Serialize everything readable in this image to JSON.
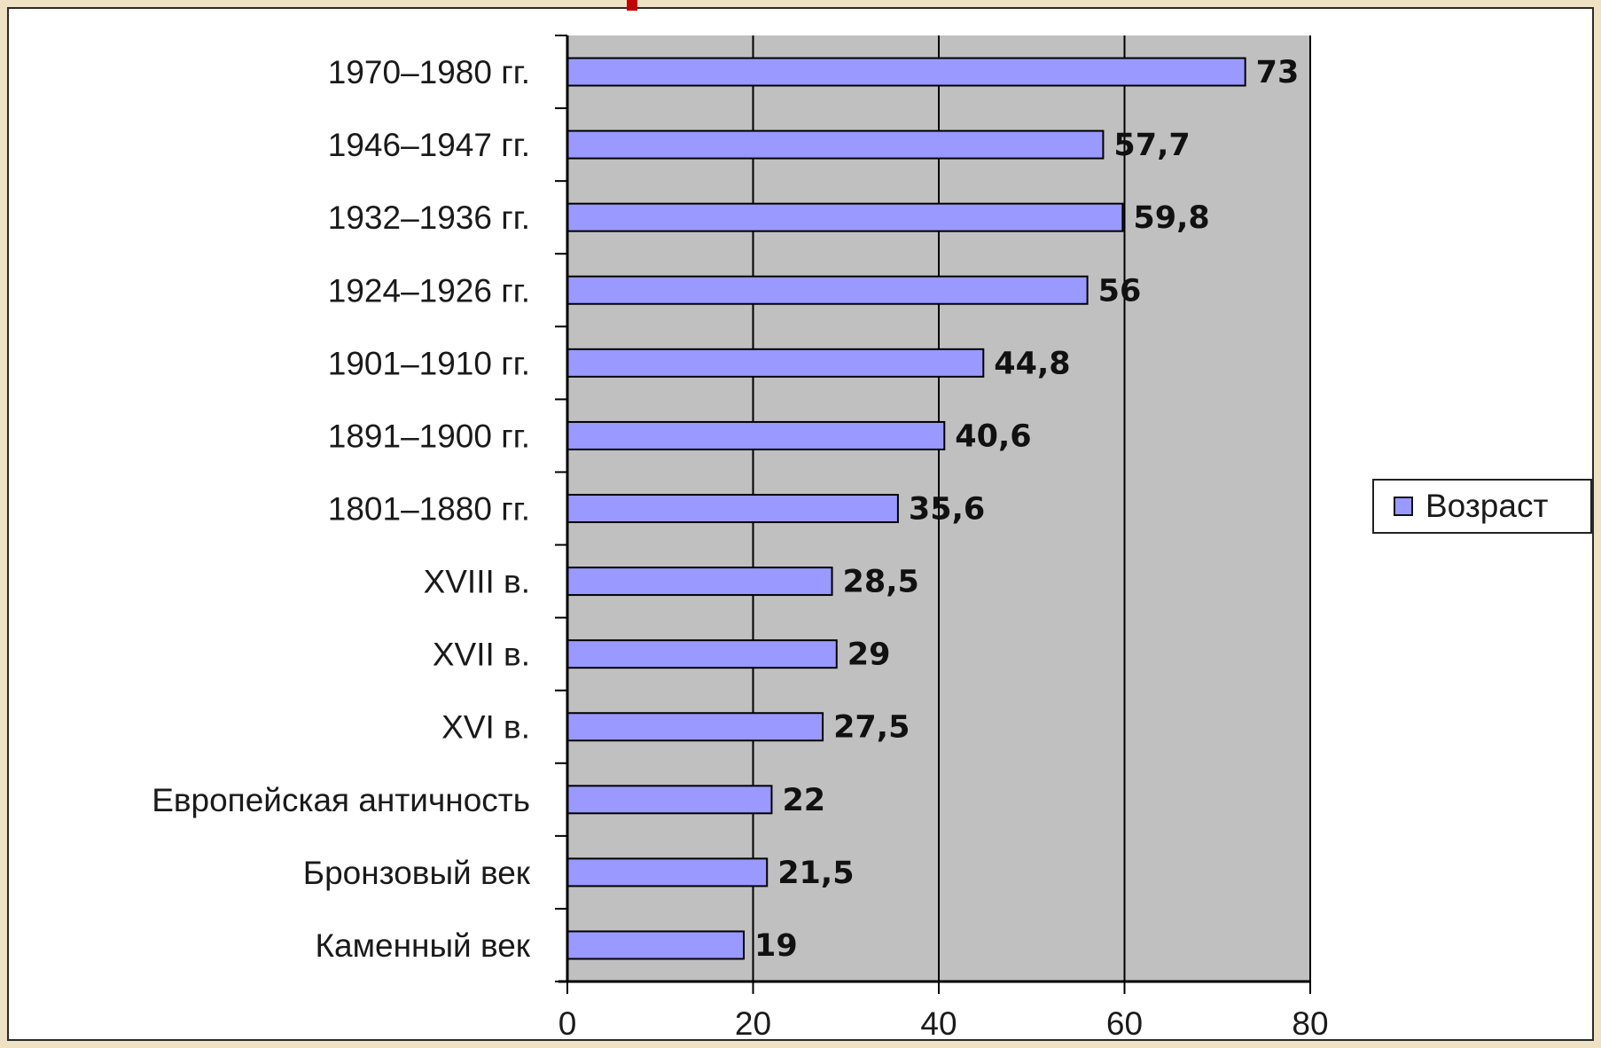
{
  "colors": {
    "bar": "#9999ff",
    "plot_area": "#c0c0c0",
    "axis": "#000000"
  },
  "chart_data": {
    "type": "bar",
    "orientation": "horizontal",
    "categories": [
      "1970–1980 гг.",
      "1946–1947 гг.",
      "1932–1936 гг.",
      "1924–1926 гг.",
      "1901–1910 гг.",
      "1891–1900 гг.",
      "1801–1880 гг.",
      "XVIII в.",
      "XVII в.",
      "XVI в.",
      "Европейская античность",
      "Бронзовый век",
      "Каменный век"
    ],
    "series": [
      {
        "name": "Возраст",
        "values": [
          73,
          57.7,
          59.8,
          56,
          44.8,
          40.6,
          35.6,
          28.5,
          29,
          27.5,
          22,
          21.5,
          19
        ],
        "labels": [
          "73",
          "57,7",
          "59,8",
          "56",
          "44,8",
          "40,6",
          "35,6",
          "28,5",
          "29",
          "27,5",
          "22",
          "21,5",
          "19"
        ]
      }
    ],
    "xlim": [
      0,
      80
    ],
    "xticks": [
      "0",
      "20",
      "40",
      "60",
      "80"
    ],
    "grid": true,
    "legend": "right"
  }
}
